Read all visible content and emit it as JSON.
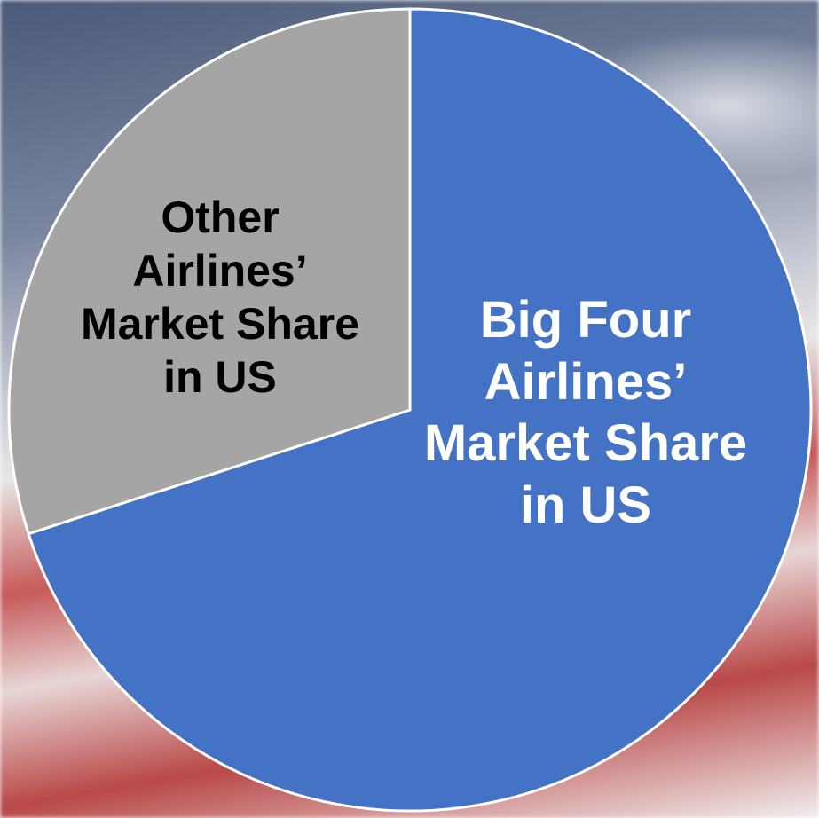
{
  "chart_data": {
    "type": "pie",
    "categories": [
      "Big Four Airlines’ Market Share in US",
      "Other Airlines’ Market Share in US"
    ],
    "values": [
      70,
      30
    ],
    "colors": [
      "#4472c4",
      "#a5a5a5"
    ],
    "label_colors": [
      "#ffffff",
      "#000000"
    ]
  }
}
